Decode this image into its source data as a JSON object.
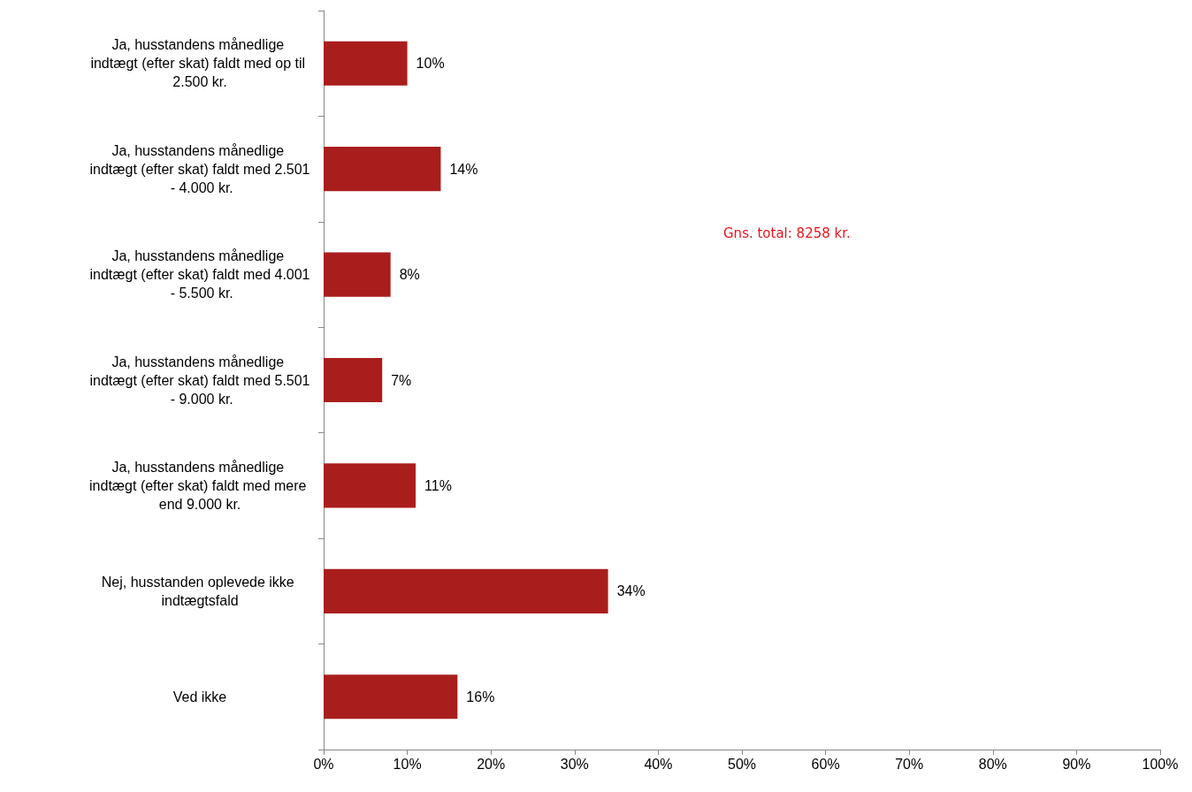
{
  "chart_data": {
    "type": "bar",
    "orientation": "horizontal",
    "categories": [
      "Ja, husstandens månedlige indtægt (efter skat) faldt med op til 2.500 kr.",
      "Ja, husstandens månedlige indtægt (efter skat) faldt med 2.501 - 4.000 kr.",
      "Ja, husstandens månedlige indtægt (efter skat) faldt med 4.001 - 5.500 kr.",
      "Ja, husstandens månedlige indtægt (efter skat) faldt med 5.501 - 9.000 kr.",
      "Ja, husstandens månedlige indtægt (efter skat) faldt med mere end 9.000 kr.",
      "Nej, husstanden oplevede ikke indtægtsfald",
      "Ved ikke"
    ],
    "values": [
      10,
      14,
      8,
      7,
      11,
      34,
      16
    ],
    "value_labels": [
      "10%",
      "14%",
      "8%",
      "7%",
      "11%",
      "34%",
      "16%"
    ],
    "color": "#a91e1c",
    "xlim": [
      0,
      100
    ],
    "xticks": [
      {
        "value": 0,
        "label": "0%"
      },
      {
        "value": 10,
        "label": "10%"
      },
      {
        "value": 20,
        "label": "20%"
      },
      {
        "value": 30,
        "label": "30%"
      },
      {
        "value": 40,
        "label": "40%"
      },
      {
        "value": 50,
        "label": "50%"
      },
      {
        "value": 60,
        "label": "60%"
      },
      {
        "value": 70,
        "label": "70%"
      },
      {
        "value": 80,
        "label": "80%"
      },
      {
        "value": 90,
        "label": "90%"
      },
      {
        "value": 100,
        "label": "100%"
      }
    ],
    "annotations": [
      "Gns. total: 8258 kr."
    ]
  }
}
